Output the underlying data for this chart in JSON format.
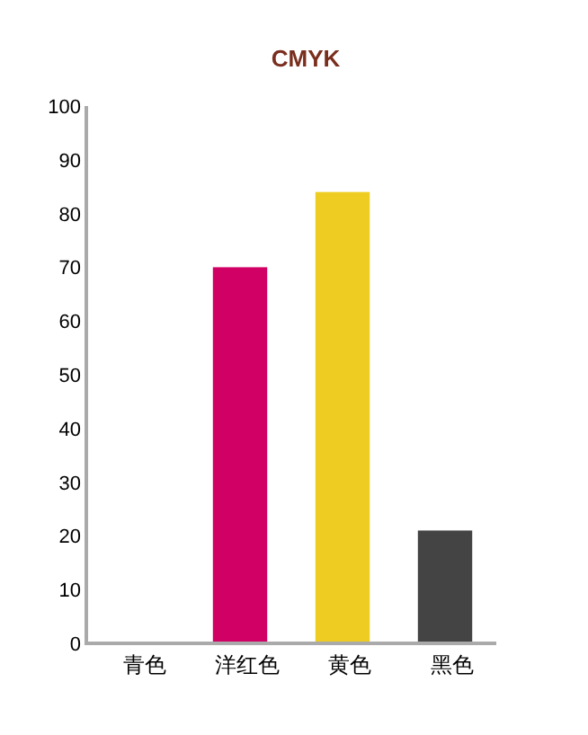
{
  "chart_data": {
    "type": "bar",
    "title": "CMYK",
    "categories": [
      "青色",
      "洋红色",
      "黄色",
      "黑色"
    ],
    "values": [
      0,
      70,
      84,
      21
    ],
    "colors": [
      "#00a0e9",
      "#d10064",
      "#efcc22",
      "#444444"
    ],
    "ylim": [
      0,
      100
    ],
    "yticks": [
      0,
      10,
      20,
      30,
      40,
      50,
      60,
      70,
      80,
      90,
      100
    ],
    "grid": false
  }
}
